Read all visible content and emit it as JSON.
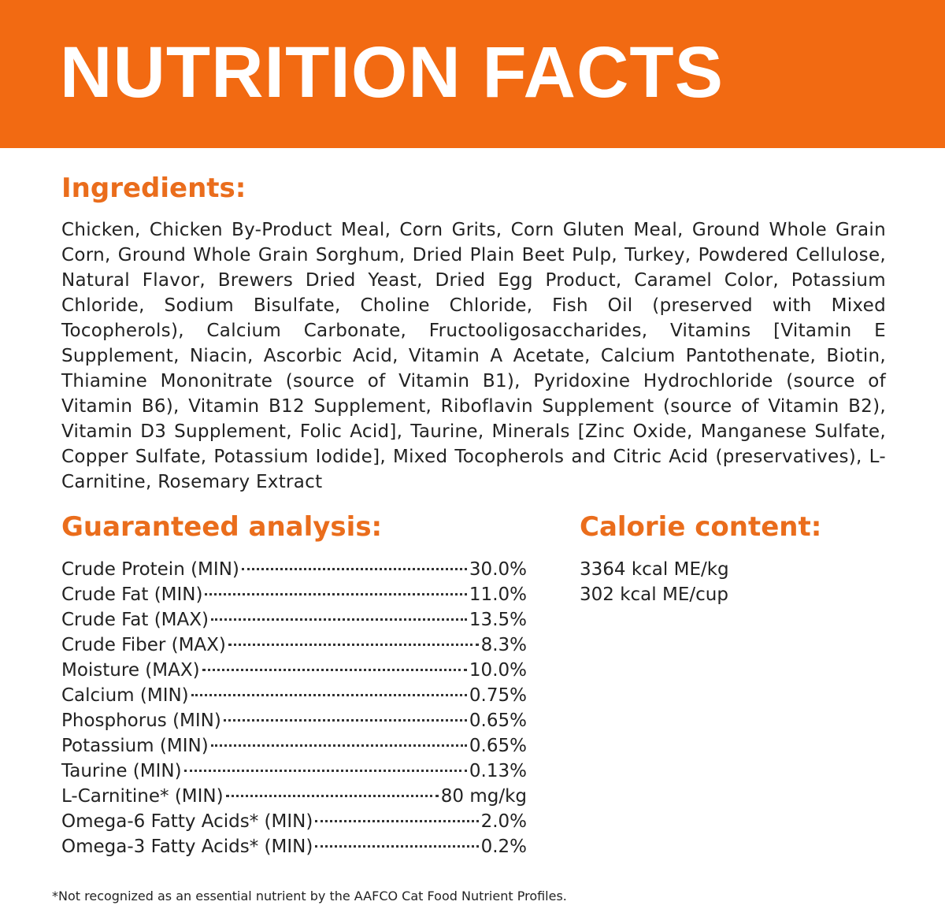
{
  "header": {
    "title": "NUTRITION FACTS"
  },
  "ingredients": {
    "heading": "Ingredients:",
    "text": "Chicken, Chicken By-Product Meal, Corn Grits, Corn Gluten Meal, Ground Whole Grain Corn, Ground Whole Grain Sorghum, Dried Plain Beet Pulp, Turkey, Powdered Cellulose, Natural Flavor, Brewers Dried Yeast, Dried Egg Product, Caramel Color, Potassium Chloride, Sodium Bisulfate, Choline Chloride, Fish Oil (preserved with Mixed Tocopherols), Calcium Carbonate, Fructooligosaccharides, Vitamins [Vitamin E Supplement, Niacin, Ascorbic Acid, Vitamin A Acetate, Calcium Pantothenate, Biotin, Thiamine Mononitrate (source of Vitamin B1), Pyridoxine Hydrochloride (source of Vitamin B6), Vitamin B12 Supplement, Riboflavin Supplement (source of Vitamin B2), Vitamin D3 Supplement, Folic Acid], Taurine, Minerals [Zinc Oxide, Manganese Sulfate, Copper Sulfate, Potassium Iodide], Mixed Tocopherols and Citric Acid (preservatives), L-Carnitine, Rosemary Extract"
  },
  "analysis": {
    "heading": "Guaranteed analysis:",
    "rows": [
      {
        "label": "Crude Protein (MIN)",
        "value": "30.0%"
      },
      {
        "label": "Crude Fat (MIN)",
        "value": "11.0%"
      },
      {
        "label": "Crude Fat (MAX)",
        "value": "13.5%"
      },
      {
        "label": "Crude Fiber (MAX)",
        "value": "8.3%"
      },
      {
        "label": "Moisture (MAX)",
        "value": "10.0%"
      },
      {
        "label": "Calcium (MIN)",
        "value": "0.75%"
      },
      {
        "label": "Phosphorus (MIN)",
        "value": "0.65%"
      },
      {
        "label": "Potassium (MIN)",
        "value": "0.65%"
      },
      {
        "label": "Taurine (MIN)",
        "value": "0.13%"
      },
      {
        "label": "L-Carnitine* (MIN)",
        "value": "80 mg/kg"
      },
      {
        "label": "Omega-6 Fatty Acids* (MIN)",
        "value": "2.0%"
      },
      {
        "label": "Omega-3 Fatty Acids* (MIN)",
        "value": "0.2%"
      }
    ]
  },
  "calorie": {
    "heading": "Calorie content:",
    "lines": [
      "3364 kcal ME/kg",
      "302 kcal ME/cup"
    ]
  },
  "footnote": "*Not recognized as an essential nutrient by the AAFCO Cat Food Nutrient Profiles."
}
